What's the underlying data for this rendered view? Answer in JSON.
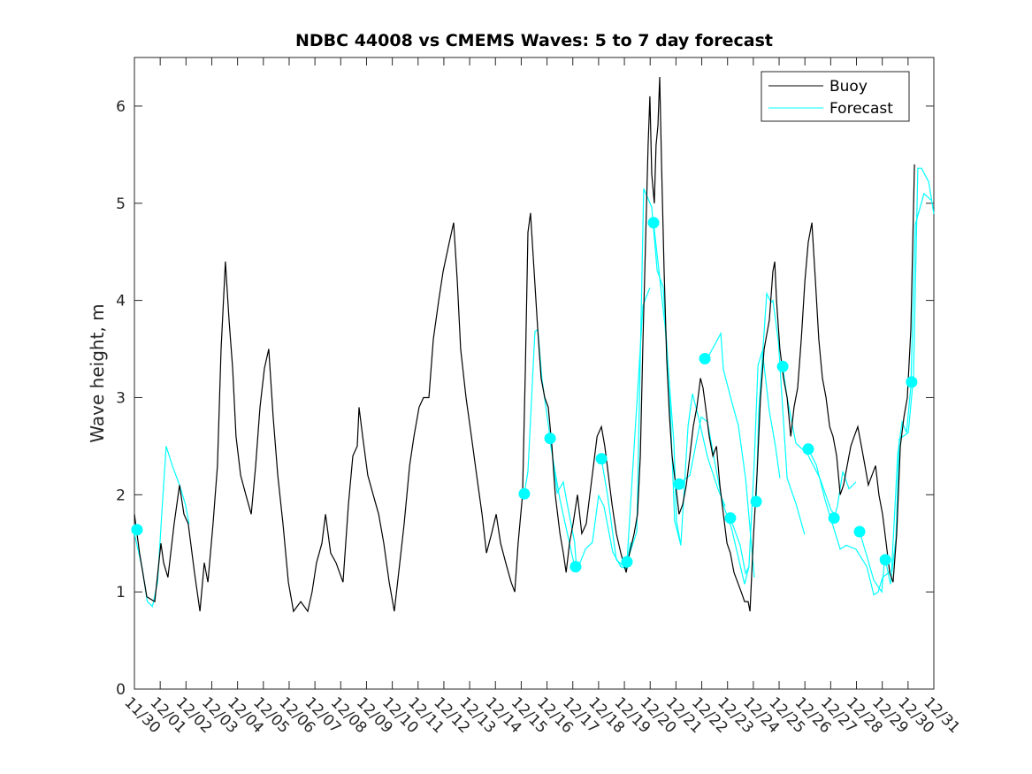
{
  "chart_data": {
    "type": "line",
    "title": "NDBC 44008 vs CMEMS Waves: 5 to 7 day forecast",
    "xlabel": "",
    "ylabel": "Wave height, m",
    "x_unit": "days since 11/30",
    "xlim": [
      0,
      31
    ],
    "ylim": [
      0,
      6.5
    ],
    "yticks": [
      0,
      1,
      2,
      3,
      4,
      5,
      6
    ],
    "xtick_labels": [
      "11/30",
      "12/01",
      "12/02",
      "12/03",
      "12/04",
      "12/05",
      "12/06",
      "12/07",
      "12/08",
      "12/09",
      "12/10",
      "12/11",
      "12/12",
      "12/13",
      "12/14",
      "12/15",
      "12/16",
      "12/17",
      "12/18",
      "12/19",
      "12/20",
      "12/21",
      "12/22",
      "12/23",
      "12/24",
      "12/25",
      "12/26",
      "12/27",
      "12/28",
      "12/29",
      "12/30",
      "12/31"
    ],
    "legend": {
      "placement": "top-right",
      "entries": [
        "Buoy",
        "Forecast"
      ]
    },
    "colors": {
      "buoy": "#000000",
      "forecast": "#00ffff"
    },
    "buoy": [
      [
        0,
        1.8
      ],
      [
        0.2,
        1.4
      ],
      [
        0.48,
        0.95
      ],
      [
        0.79,
        0.9
      ],
      [
        1.03,
        1.5
      ],
      [
        1.13,
        1.3
      ],
      [
        1.3,
        1.15
      ],
      [
        1.54,
        1.7
      ],
      [
        1.75,
        2.1
      ],
      [
        1.92,
        1.8
      ],
      [
        2.09,
        1.7
      ],
      [
        2.33,
        1.2
      ],
      [
        2.54,
        0.8
      ],
      [
        2.71,
        1.3
      ],
      [
        2.85,
        1.1
      ],
      [
        3.05,
        1.7
      ],
      [
        3.22,
        2.3
      ],
      [
        3.36,
        3.5
      ],
      [
        3.53,
        4.4
      ],
      [
        3.67,
        3.8
      ],
      [
        3.81,
        3.3
      ],
      [
        3.94,
        2.6
      ],
      [
        4.12,
        2.2
      ],
      [
        4.32,
        2.0
      ],
      [
        4.53,
        1.8
      ],
      [
        4.7,
        2.3
      ],
      [
        4.87,
        2.9
      ],
      [
        5.04,
        3.3
      ],
      [
        5.21,
        3.5
      ],
      [
        5.38,
        2.8
      ],
      [
        5.56,
        2.2
      ],
      [
        5.76,
        1.7
      ],
      [
        5.97,
        1.1
      ],
      [
        6.17,
        0.8
      ],
      [
        6.45,
        0.9
      ],
      [
        6.72,
        0.8
      ],
      [
        6.89,
        1.0
      ],
      [
        7.06,
        1.3
      ],
      [
        7.27,
        1.5
      ],
      [
        7.41,
        1.8
      ],
      [
        7.61,
        1.4
      ],
      [
        7.82,
        1.3
      ],
      [
        8.09,
        1.1
      ],
      [
        8.3,
        1.9
      ],
      [
        8.47,
        2.4
      ],
      [
        8.64,
        2.5
      ],
      [
        8.71,
        2.9
      ],
      [
        8.85,
        2.6
      ],
      [
        9.05,
        2.2
      ],
      [
        9.26,
        2.0
      ],
      [
        9.47,
        1.8
      ],
      [
        9.67,
        1.5
      ],
      [
        9.88,
        1.1
      ],
      [
        10.08,
        0.8
      ],
      [
        10.29,
        1.3
      ],
      [
        10.46,
        1.7
      ],
      [
        10.67,
        2.3
      ],
      [
        10.84,
        2.6
      ],
      [
        11.04,
        2.9
      ],
      [
        11.21,
        3.0
      ],
      [
        11.42,
        3.0
      ],
      [
        11.59,
        3.6
      ],
      [
        11.8,
        4.0
      ],
      [
        11.97,
        4.3
      ],
      [
        12.21,
        4.6
      ],
      [
        12.38,
        4.8
      ],
      [
        12.52,
        4.2
      ],
      [
        12.65,
        3.5
      ],
      [
        12.86,
        3.0
      ],
      [
        13.07,
        2.6
      ],
      [
        13.27,
        2.2
      ],
      [
        13.48,
        1.8
      ],
      [
        13.65,
        1.4
      ],
      [
        13.85,
        1.6
      ],
      [
        14.03,
        1.8
      ],
      [
        14.2,
        1.5
      ],
      [
        14.4,
        1.3
      ],
      [
        14.61,
        1.1
      ],
      [
        14.75,
        1.0
      ],
      [
        14.88,
        1.5
      ],
      [
        15.05,
        2.0
      ],
      [
        15.16,
        3.3
      ],
      [
        15.26,
        4.7
      ],
      [
        15.36,
        4.9
      ],
      [
        15.5,
        4.3
      ],
      [
        15.64,
        3.7
      ],
      [
        15.77,
        3.2
      ],
      [
        15.91,
        3.0
      ],
      [
        16.05,
        2.9
      ],
      [
        16.19,
        2.5
      ],
      [
        16.32,
        2.0
      ],
      [
        16.5,
        1.6
      ],
      [
        16.63,
        1.4
      ],
      [
        16.74,
        1.2
      ],
      [
        16.87,
        1.5
      ],
      [
        17.01,
        1.7
      ],
      [
        17.18,
        2.0
      ],
      [
        17.35,
        1.6
      ],
      [
        17.52,
        1.7
      ],
      [
        17.66,
        2.0
      ],
      [
        17.8,
        2.3
      ],
      [
        17.94,
        2.6
      ],
      [
        18.11,
        2.7
      ],
      [
        18.24,
        2.5
      ],
      [
        18.38,
        2.2
      ],
      [
        18.52,
        1.9
      ],
      [
        18.69,
        1.6
      ],
      [
        18.86,
        1.4
      ],
      [
        19.07,
        1.2
      ],
      [
        19.2,
        1.4
      ],
      [
        19.38,
        1.6
      ],
      [
        19.51,
        1.8
      ],
      [
        19.62,
        2.4
      ],
      [
        19.72,
        3.6
      ],
      [
        19.82,
        4.6
      ],
      [
        19.92,
        5.6
      ],
      [
        19.99,
        6.1
      ],
      [
        20.06,
        5.3
      ],
      [
        20.16,
        5.0
      ],
      [
        20.23,
        5.6
      ],
      [
        20.3,
        5.8
      ],
      [
        20.37,
        6.3
      ],
      [
        20.44,
        5.4
      ],
      [
        20.54,
        4.3
      ],
      [
        20.64,
        3.4
      ],
      [
        20.75,
        2.8
      ],
      [
        20.85,
        2.4
      ],
      [
        20.99,
        2.1
      ],
      [
        21.12,
        1.8
      ],
      [
        21.26,
        1.9
      ],
      [
        21.4,
        2.1
      ],
      [
        21.54,
        2.4
      ],
      [
        21.67,
        2.7
      ],
      [
        21.81,
        2.9
      ],
      [
        21.95,
        3.2
      ],
      [
        22.05,
        3.1
      ],
      [
        22.15,
        2.9
      ],
      [
        22.29,
        2.6
      ],
      [
        22.43,
        2.4
      ],
      [
        22.57,
        2.5
      ],
      [
        22.7,
        2.1
      ],
      [
        22.84,
        1.8
      ],
      [
        22.98,
        1.5
      ],
      [
        23.11,
        1.4
      ],
      [
        23.25,
        1.2
      ],
      [
        23.39,
        1.1
      ],
      [
        23.53,
        1.0
      ],
      [
        23.66,
        0.9
      ],
      [
        23.8,
        0.9
      ],
      [
        23.87,
        0.8
      ],
      [
        24.01,
        1.6
      ],
      [
        24.14,
        2.2
      ],
      [
        24.28,
        3.0
      ],
      [
        24.42,
        3.5
      ],
      [
        24.62,
        3.8
      ],
      [
        24.76,
        4.3
      ],
      [
        24.83,
        4.4
      ],
      [
        24.9,
        4.0
      ],
      [
        25.03,
        3.5
      ],
      [
        25.17,
        3.2
      ],
      [
        25.31,
        3.0
      ],
      [
        25.45,
        2.6
      ],
      [
        25.58,
        2.9
      ],
      [
        25.72,
        3.1
      ],
      [
        25.86,
        3.6
      ],
      [
        26.0,
        4.2
      ],
      [
        26.13,
        4.6
      ],
      [
        26.27,
        4.8
      ],
      [
        26.41,
        4.2
      ],
      [
        26.54,
        3.6
      ],
      [
        26.68,
        3.2
      ],
      [
        26.82,
        3.0
      ],
      [
        26.96,
        2.7
      ],
      [
        27.09,
        2.6
      ],
      [
        27.23,
        2.4
      ],
      [
        27.37,
        2.0
      ],
      [
        27.5,
        2.1
      ],
      [
        27.64,
        2.3
      ],
      [
        27.78,
        2.5
      ],
      [
        27.91,
        2.6
      ],
      [
        28.05,
        2.7
      ],
      [
        28.19,
        2.5
      ],
      [
        28.33,
        2.3
      ],
      [
        28.46,
        2.1
      ],
      [
        28.6,
        2.2
      ],
      [
        28.74,
        2.3
      ],
      [
        28.87,
        2.0
      ],
      [
        29.01,
        1.8
      ],
      [
        29.15,
        1.5
      ],
      [
        29.29,
        1.2
      ],
      [
        29.42,
        1.1
      ],
      [
        29.56,
        1.6
      ],
      [
        29.7,
        2.5
      ],
      [
        29.84,
        2.8
      ],
      [
        29.97,
        3.0
      ],
      [
        30.11,
        3.7
      ],
      [
        30.25,
        5.4
      ]
    ],
    "forecast_segments": [
      [
        [
          0,
          1.6
        ],
        [
          0.3,
          1.25
        ],
        [
          0.5,
          0.9
        ],
        [
          0.7,
          0.85
        ],
        [
          0.9,
          1.1
        ],
        [
          1.06,
          1.8
        ],
        [
          1.23,
          2.5
        ],
        [
          1.47,
          2.3
        ],
        [
          1.75,
          2.1
        ],
        [
          1.98,
          1.9
        ],
        [
          2.12,
          1.7
        ]
      ],
      [
        [
          15.12,
          2.01
        ],
        [
          15.26,
          2.24
        ],
        [
          15.53,
          3.68
        ],
        [
          15.64,
          3.7
        ],
        [
          15.81,
          3.18
        ],
        [
          16.15,
          2.53
        ],
        [
          16.39,
          2.02
        ],
        [
          16.63,
          2.13
        ],
        [
          16.8,
          1.88
        ],
        [
          17.07,
          1.51
        ],
        [
          17.15,
          1.22
        ]
      ],
      [
        [
          16.12,
          2.58
        ],
        [
          16.15,
          2.49
        ],
        [
          16.5,
          1.95
        ],
        [
          17.07,
          1.26
        ]
      ],
      [
        [
          17.11,
          1.26
        ],
        [
          17.15,
          1.21
        ],
        [
          17.49,
          1.44
        ],
        [
          17.76,
          1.51
        ],
        [
          18.0,
          1.99
        ],
        [
          18.21,
          1.88
        ],
        [
          18.55,
          1.41
        ],
        [
          18.86,
          1.26
        ],
        [
          19.07,
          1.24
        ]
      ],
      [
        [
          18.11,
          2.37
        ],
        [
          18.35,
          1.99
        ],
        [
          18.69,
          1.33
        ],
        [
          19.07,
          1.24
        ],
        [
          19.24,
          1.51
        ]
      ],
      [
        [
          19.1,
          1.31
        ],
        [
          19.48,
          1.62
        ],
        [
          19.75,
          5.15
        ],
        [
          20.06,
          4.96
        ],
        [
          20.27,
          4.31
        ],
        [
          20.51,
          4.13
        ],
        [
          20.75,
          3.08
        ],
        [
          20.95,
          1.73
        ],
        [
          21.19,
          1.48
        ]
      ],
      [
        [
          19.1,
          1.31
        ],
        [
          19.72,
          3.95
        ],
        [
          19.99,
          4.13
        ]
      ],
      [
        [
          20.13,
          4.8
        ],
        [
          20.34,
          4.31
        ],
        [
          20.58,
          3.73
        ],
        [
          20.92,
          2.53
        ],
        [
          21.02,
          1.73
        ],
        [
          21.19,
          1.48
        ],
        [
          21.47,
          2.71
        ],
        [
          21.64,
          3.04
        ],
        [
          21.88,
          2.79
        ],
        [
          22.22,
          2.39
        ],
        [
          22.63,
          2.06
        ],
        [
          22.91,
          1.88
        ]
      ],
      [
        [
          21.12,
          2.11
        ],
        [
          21.54,
          2.2
        ],
        [
          21.98,
          2.8
        ],
        [
          22.22,
          2.75
        ],
        [
          22.57,
          2.24
        ],
        [
          22.81,
          1.91
        ],
        [
          23.15,
          1.66
        ],
        [
          23.66,
          1.08
        ],
        [
          23.83,
          1.26
        ]
      ],
      [
        [
          22.12,
          3.4
        ],
        [
          22.29,
          3.44
        ],
        [
          22.74,
          3.66
        ],
        [
          22.84,
          3.29
        ],
        [
          23.15,
          2.97
        ],
        [
          23.42,
          2.71
        ],
        [
          23.7,
          2.17
        ],
        [
          24.04,
          1.15
        ]
      ],
      [
        [
          23.11,
          1.76
        ],
        [
          23.49,
          1.48
        ],
        [
          23.7,
          1.19
        ],
        [
          23.83,
          1.26
        ],
        [
          24.04,
          2.35
        ],
        [
          24.18,
          3.33
        ],
        [
          24.35,
          3.48
        ],
        [
          24.62,
          2.86
        ],
        [
          24.86,
          2.5
        ],
        [
          25.03,
          2.17
        ]
      ],
      [
        [
          24.11,
          1.93
        ],
        [
          24.21,
          2.86
        ],
        [
          24.52,
          4.07
        ],
        [
          24.69,
          3.98
        ],
        [
          24.76,
          4.0
        ],
        [
          24.97,
          3.58
        ],
        [
          25.31,
          2.17
        ],
        [
          25.65,
          1.91
        ],
        [
          25.99,
          1.59
        ]
      ],
      [
        [
          25.14,
          3.32
        ],
        [
          25.31,
          3.0
        ],
        [
          25.65,
          2.53
        ],
        [
          26.1,
          2.42
        ],
        [
          26.58,
          2.17
        ],
        [
          27.02,
          1.84
        ],
        [
          27.26,
          1.77
        ]
      ],
      [
        [
          26.13,
          2.47
        ],
        [
          26.44,
          2.31
        ],
        [
          26.78,
          1.95
        ],
        [
          27.37,
          1.44
        ],
        [
          27.61,
          1.48
        ],
        [
          27.98,
          1.44
        ],
        [
          28.4,
          1.26
        ],
        [
          28.67,
          0.97
        ],
        [
          28.84,
          1.0
        ],
        [
          29.01,
          1.15
        ]
      ],
      [
        [
          27.13,
          1.76
        ],
        [
          27.26,
          1.88
        ],
        [
          27.47,
          2.24
        ],
        [
          27.71,
          2.06
        ],
        [
          27.98,
          2.13
        ]
      ],
      [
        [
          28.12,
          1.62
        ],
        [
          28.4,
          1.37
        ],
        [
          28.67,
          1.12
        ],
        [
          28.98,
          1.0
        ],
        [
          29.08,
          1.3
        ]
      ],
      [
        [
          29.12,
          1.33
        ],
        [
          29.32,
          1.08
        ],
        [
          29.53,
          1.55
        ],
        [
          29.66,
          2.57
        ],
        [
          30.01,
          2.64
        ],
        [
          30.21,
          3.22
        ],
        [
          30.38,
          5.36
        ],
        [
          30.52,
          5.36
        ],
        [
          30.8,
          5.22
        ],
        [
          31.0,
          4.89
        ]
      ],
      [
        [
          29.01,
          1.15
        ],
        [
          29.36,
          1.22
        ],
        [
          29.6,
          2.42
        ],
        [
          29.77,
          2.75
        ],
        [
          29.94,
          2.64
        ],
        [
          30.11,
          3.11
        ],
        [
          30.28,
          4.78
        ],
        [
          30.62,
          5.1
        ],
        [
          30.9,
          5.03
        ]
      ]
    ],
    "forecast_points": [
      [
        0.1,
        1.64
      ],
      [
        15.12,
        2.01
      ],
      [
        16.12,
        2.58
      ],
      [
        17.11,
        1.26
      ],
      [
        18.11,
        2.37
      ],
      [
        19.1,
        1.31
      ],
      [
        20.13,
        4.8
      ],
      [
        21.12,
        2.11
      ],
      [
        22.12,
        3.4
      ],
      [
        23.11,
        1.76
      ],
      [
        24.11,
        1.93
      ],
      [
        25.14,
        3.32
      ],
      [
        26.13,
        2.47
      ],
      [
        27.13,
        1.76
      ],
      [
        28.12,
        1.62
      ],
      [
        29.12,
        1.33
      ],
      [
        30.14,
        3.16
      ]
    ]
  }
}
